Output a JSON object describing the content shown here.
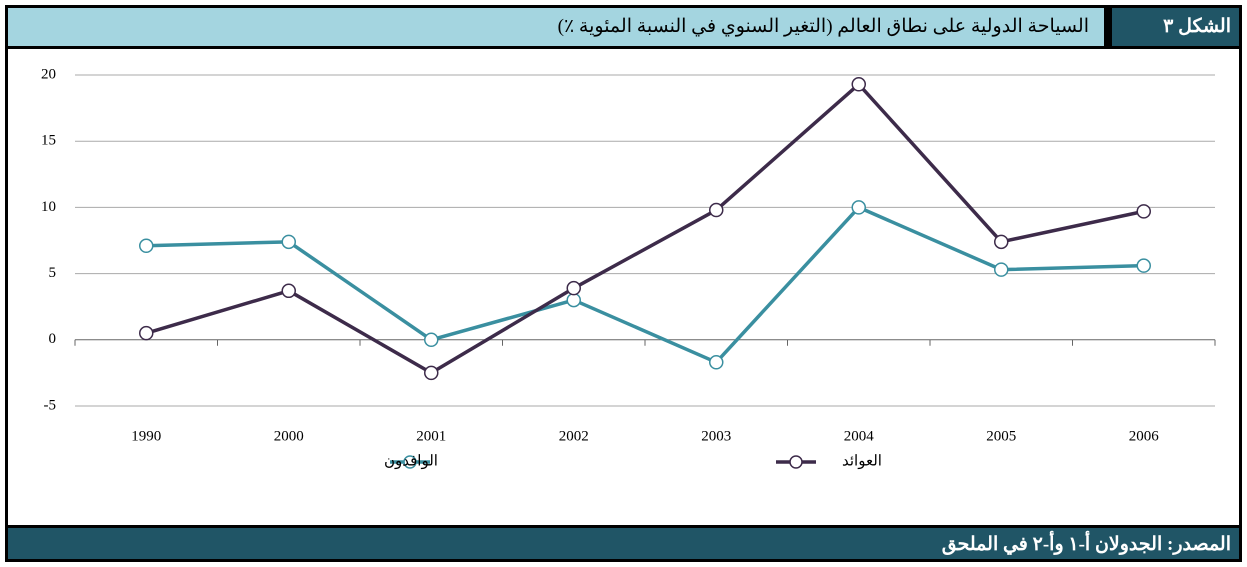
{
  "chart_data": {
    "type": "line",
    "figure_label": "الشكل ٣",
    "title": "السياحة الدولية على نطاق العالم (التغير السنوي في النسبة المئوية ٪)",
    "source": "المصدر: الجدولان أ-١ وأ-٢ في الملحق",
    "categories": [
      "1990",
      "2000",
      "2001",
      "2002",
      "2003",
      "2004",
      "2005",
      "2006"
    ],
    "series": [
      {
        "name": "الوافدون",
        "color": "#3a8fa0",
        "values": [
          7.1,
          7.4,
          0,
          3.0,
          -1.7,
          10.0,
          5.3,
          5.6
        ]
      },
      {
        "name": "العوائد",
        "color": "#3d2b4a",
        "values": [
          0.5,
          3.7,
          -2.5,
          3.9,
          9.8,
          19.3,
          7.4,
          9.7
        ]
      }
    ],
    "ylim": [
      -5,
      20
    ],
    "yticks": [
      -5,
      0,
      5,
      10,
      15,
      20
    ],
    "grid": true,
    "legend": "bottom"
  }
}
